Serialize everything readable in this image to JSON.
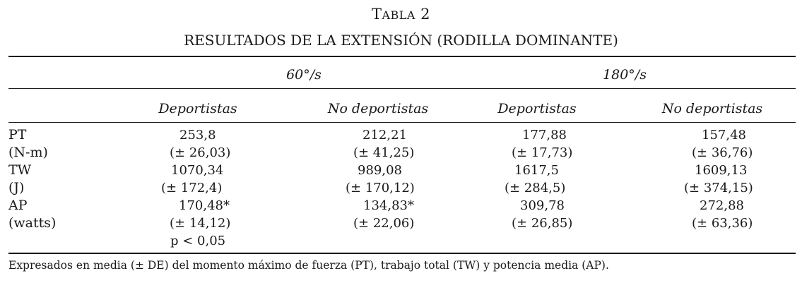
{
  "table": {
    "number_prefix": "T",
    "number_smallcaps": "ABLA",
    "number_suffix": " 2",
    "title": "RESULTADOS DE LA EXTENSIÓN (RODILLA DOMINANTE)",
    "speed_headers": [
      "60°/s",
      "180°/s"
    ],
    "group_headers": [
      "Deportistas",
      "No deportistas",
      "Deportistas",
      "No deportistas"
    ],
    "rows": [
      {
        "label": "PT",
        "values": [
          "253,8",
          "212,21",
          "177,88",
          "157,48"
        ]
      },
      {
        "label": "(N-m)",
        "values": [
          "(± 26,03)",
          "(± 41,25)",
          "(± 17,73)",
          "(± 36,76)"
        ]
      },
      {
        "label": "TW",
        "values": [
          "1070,34",
          "989,08",
          "1617,5",
          "1609,13"
        ]
      },
      {
        "label": "(J)",
        "values": [
          "(± 172,4)",
          "(± 170,12)",
          "(± 284,5)",
          "(± 374,15)"
        ]
      },
      {
        "label": "AP",
        "values": [
          "170,48*",
          "134,83*",
          "309,78",
          "272,88"
        ]
      },
      {
        "label": "(watts)",
        "values": [
          "(± 14,12)",
          "(± 22,06)",
          "(± 26,85)",
          "(± 63,36)"
        ]
      }
    ],
    "p_value": "p < 0,05",
    "footnote": "Expresados en media (± DE) del momento máximo de fuerza (PT), trabajo total (TW) y potencia media (AP)."
  }
}
